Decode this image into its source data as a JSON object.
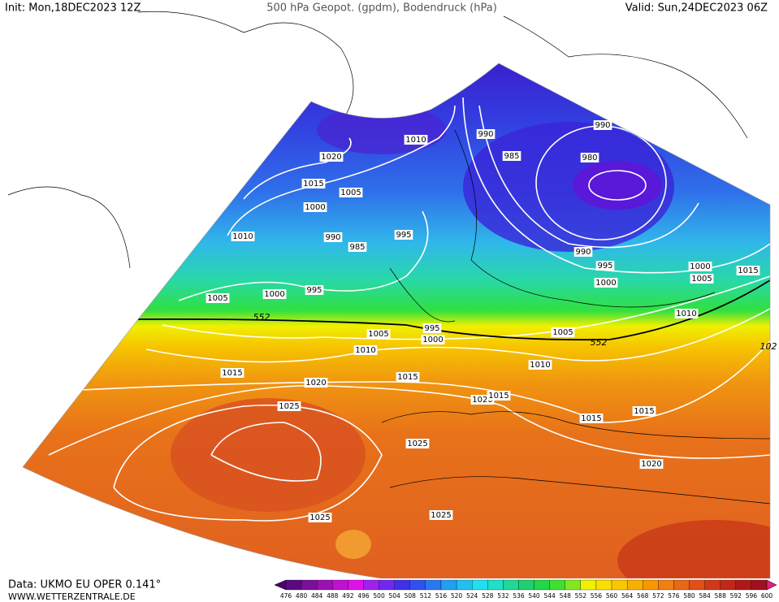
{
  "header": {
    "init": "Init: Mon,18DEC2023 12Z",
    "title": "500 hPa Geopot. (gpdm), Bodendruck (hPa)",
    "valid": "Valid: Sun,24DEC2023 06Z"
  },
  "footer": {
    "source": "Data: UKMO EU OPER 0.141°",
    "site": "WWW.WETTERZENTRALE.DE"
  },
  "isobar_labels": [
    1020,
    1010,
    990,
    985,
    990,
    980,
    1015,
    1005,
    1000,
    1010,
    990,
    985,
    995,
    990,
    995,
    1000,
    1005,
    1015,
    1000,
    1005,
    1000,
    995,
    1010,
    552,
    1005,
    995,
    1000,
    1005,
    552,
    1010,
    1010,
    1015,
    1020,
    1015,
    1020,
    1015,
    1025,
    1015,
    1015,
    1025,
    1020,
    1025,
    1025,
    102
  ],
  "colorbar": {
    "levels": [
      476,
      480,
      484,
      488,
      492,
      496,
      500,
      504,
      508,
      512,
      516,
      520,
      524,
      528,
      532,
      536,
      540,
      544,
      548,
      552,
      556,
      560,
      564,
      568,
      572,
      576,
      580,
      584,
      588,
      592,
      596,
      600
    ],
    "colors": [
      "#50006e",
      "#5a0a80",
      "#78109a",
      "#9a10b4",
      "#c010d0",
      "#e010e8",
      "#a020f0",
      "#7028f0",
      "#4030e8",
      "#3050f0",
      "#2878f0",
      "#20a0f0",
      "#20c0f0",
      "#20e0f0",
      "#20e0c8",
      "#20d898",
      "#20d070",
      "#20d848",
      "#40e030",
      "#80e820",
      "#f0f000",
      "#f8e000",
      "#f8c800",
      "#f8b000",
      "#f89800",
      "#f08010",
      "#e86818",
      "#e05018",
      "#d03818",
      "#c02818",
      "#b01818",
      "#a01020",
      "#e0207a"
    ]
  }
}
